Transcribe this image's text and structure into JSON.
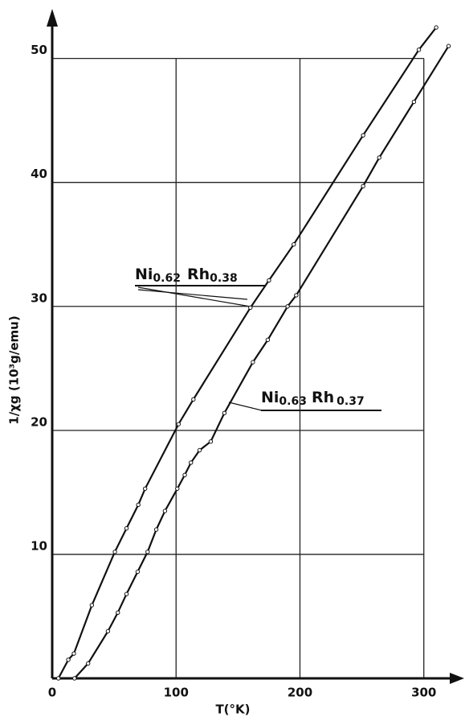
{
  "chart_data": {
    "type": "line",
    "xlabel": "T(°K)",
    "ylabel": "1/χg (10³g/emu)",
    "xlim": [
      0,
      330
    ],
    "ylim": [
      0,
      54
    ],
    "xticks": [
      0,
      100,
      200,
      300
    ],
    "yticks": [
      10,
      20,
      30,
      40,
      50
    ],
    "grid": true,
    "series": [
      {
        "name": [
          "Ni",
          "0.62",
          "Rh",
          "0.38"
        ],
        "color": "#111111",
        "x": [
          5,
          13,
          17.5,
          32,
          50.6,
          60,
          69.5,
          75,
          102,
          114,
          160,
          175,
          195,
          251,
          296,
          310
        ],
        "values": [
          0,
          1.5,
          2,
          5.9,
          10.2,
          12.1,
          14,
          15.3,
          20.5,
          22.5,
          29.9,
          32.1,
          35,
          43.8,
          50.7,
          52.5
        ]
      },
      {
        "name": [
          "Ni",
          "0.63",
          "Rh",
          "0.37"
        ],
        "color": "#111111",
        "x": [
          18,
          29,
          45,
          53,
          60,
          69,
          77,
          84,
          91,
          101,
          107,
          112,
          119,
          128,
          139,
          162,
          174,
          190,
          197,
          251,
          264,
          292,
          320
        ],
        "values": [
          0,
          1.2,
          3.8,
          5.3,
          6.8,
          8.6,
          10.2,
          12,
          13.5,
          15.3,
          16.4,
          17.4,
          18.4,
          19.1,
          21.4,
          25.5,
          27.3,
          30,
          30.9,
          39.7,
          42,
          46.5,
          51
        ]
      }
    ]
  }
}
